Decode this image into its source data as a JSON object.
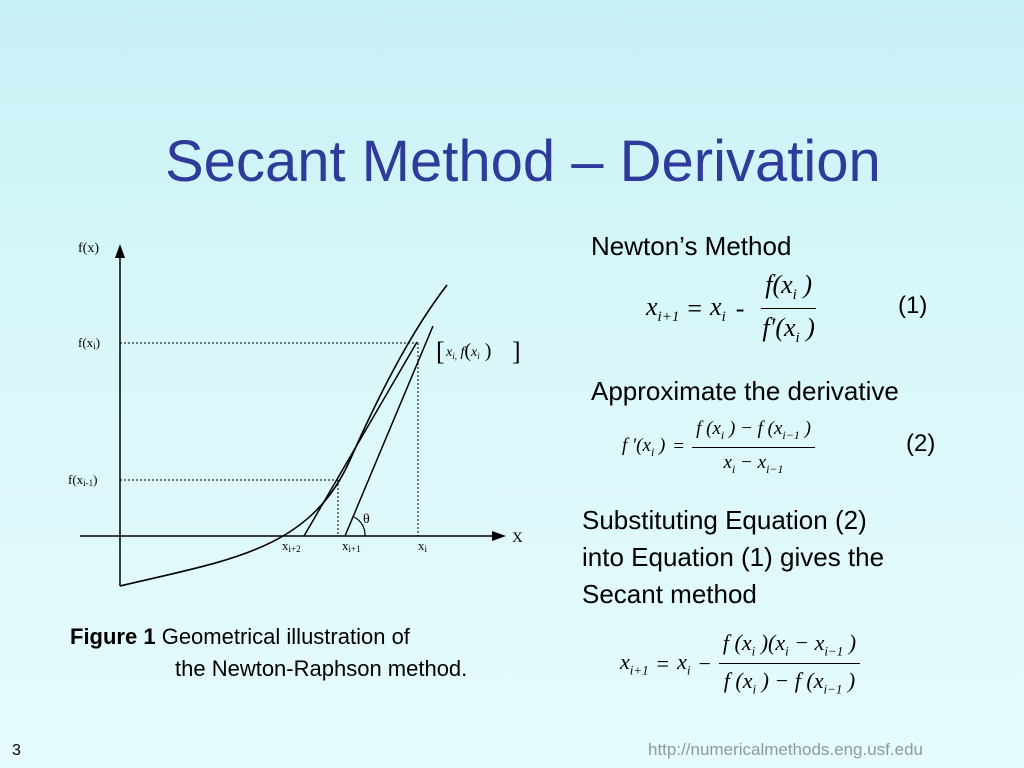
{
  "title": "Secant Method – Derivation",
  "sections": {
    "newton_heading": "Newton’s Method",
    "approx_heading": "Approximate the derivative",
    "substitute_line1": "Substituting Equation (2)",
    "substitute_line2": "into Equation (1) gives the",
    "substitute_line3": "Secant method"
  },
  "equations": {
    "eq1_number": "(1)",
    "eq2_number": "(2)"
  },
  "figure": {
    "caption_label": "Figure 1",
    "caption_line1": "Geometrical illustration of",
    "caption_line2": "the Newton-Raphson method.",
    "labels": {
      "y_axis": "f(x)",
      "x_axis": "X",
      "f_xi": "f(x",
      "f_xi_sub": "i",
      "f_xi_close": ")",
      "f_xim1": "f(x",
      "f_xim1_sub": "i-1",
      "f_xim1_close": ")",
      "x_ip2": "x",
      "x_ip2_sub": "i+2",
      "x_ip1": "x",
      "x_ip1_sub": "i+1",
      "x_i": "x",
      "x_i_sub": "i",
      "theta": "θ",
      "point_label": "[x_i, f(x_i)]"
    }
  },
  "footer": {
    "slide_number": "3",
    "url": "http://numericalmethods.eng.usf.edu"
  }
}
